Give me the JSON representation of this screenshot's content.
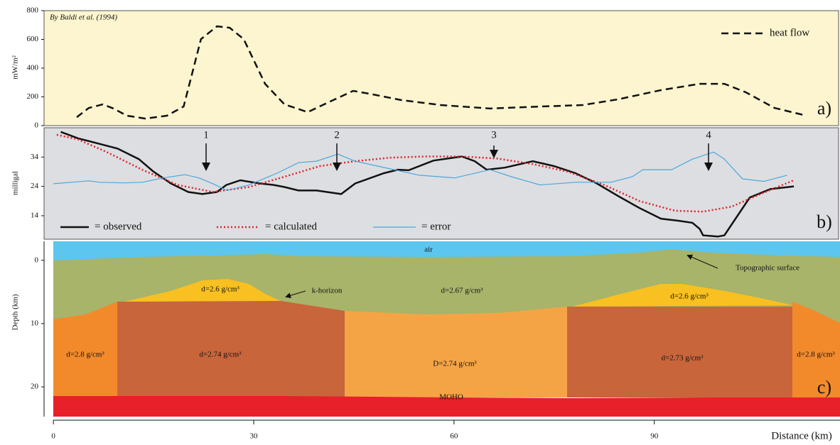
{
  "chart_data": [
    {
      "type": "line",
      "source": "By Baldi et al. (1994)",
      "ylabel": "mW/m²",
      "panel_label": "a)",
      "xlim": [
        -1.4,
        117.6
      ],
      "ylim": [
        0,
        800
      ],
      "yticks": [
        0,
        200,
        400,
        600,
        800
      ],
      "legend": "upper right",
      "series": [
        {
          "name": "heat flow",
          "color": "#111111",
          "dash": "10 6",
          "x": [
            3.5,
            5.3,
            7.4,
            9.0,
            11,
            13.8,
            17,
            19.5,
            22.1,
            24.5,
            26.4,
            28.5,
            31.7,
            34.6,
            38.1,
            41,
            44.9,
            47.9,
            52.1,
            58,
            65.4,
            72.9,
            79.3,
            84.6,
            91,
            96.8,
            100.5,
            103.7,
            108,
            112.8
          ],
          "values": [
            59,
            123,
            148,
            119,
            69,
            49,
            69,
            133,
            602,
            691,
            681,
            602,
            291,
            148,
            94,
            158,
            242,
            217,
            178,
            143,
            119,
            133,
            143,
            183,
            247,
            291,
            291,
            232,
            123,
            69
          ]
        }
      ]
    },
    {
      "type": "line",
      "ylabel": "milligal",
      "panel_label": "b)",
      "xlim": [
        -1.4,
        117.6
      ],
      "ylim": [
        6,
        44
      ],
      "yticks": [
        14,
        24,
        34
      ],
      "legend": "lower left",
      "annotations": [
        "1",
        "2",
        "3",
        "4"
      ],
      "series": [
        {
          "name": "= observed",
          "color": "#111111",
          "width": 2.5,
          "x": [
            1.1,
            3.7,
            6.9,
            9.6,
            12.8,
            14.9,
            17.6,
            20.2,
            22.3,
            24.5,
            25.9,
            28,
            30.9,
            33,
            34.6,
            36.7,
            39.4,
            43.1,
            45.2,
            49.5,
            51.6,
            53.2,
            56.9,
            61.2,
            63.1,
            64.9,
            67.6,
            71.8,
            75,
            78.2,
            81.4,
            84.6,
            87.8,
            91,
            93.6,
            95.7,
            96.8,
            97.3,
            99.5,
            100.5,
            104.3,
            107.4,
            110.9
          ],
          "values": [
            42.6,
            40.4,
            38.5,
            36.9,
            33.3,
            29.2,
            25,
            22.1,
            21.4,
            22.1,
            24.5,
            26.1,
            25,
            24.5,
            23.8,
            22.6,
            22.6,
            21.4,
            25,
            28.5,
            29.7,
            29.5,
            32.8,
            34.2,
            32.6,
            29.7,
            30.4,
            32.6,
            30.9,
            28.5,
            25,
            20.7,
            16.6,
            13,
            12.3,
            11.6,
            9.5,
            7.3,
            6.9,
            7.3,
            20.2,
            23.1,
            24
          ]
        },
        {
          "name": "= calculated",
          "color": "#e0202a",
          "width": 2.5,
          "dash": "2 3",
          "x": [
            0.5,
            3.7,
            8,
            13.3,
            18.6,
            23.9,
            29.3,
            34.6,
            39.9,
            45.2,
            50.5,
            55.9,
            61.2,
            66.5,
            71.8,
            77.1,
            82.5,
            87.8,
            93.1,
            97.3,
            101.6,
            105.9,
            110.9
          ],
          "values": [
            41.6,
            40,
            35.7,
            29.7,
            24.5,
            22.1,
            23.8,
            27.3,
            30.9,
            32.6,
            33.8,
            34.2,
            34.2,
            33.5,
            31.6,
            29,
            24.5,
            19,
            15.7,
            15.4,
            17.1,
            21.4,
            26.1
          ]
        },
        {
          "name": "= error",
          "color": "#4aa8dc",
          "width": 1.2,
          "x": [
            0,
            2.7,
            5.3,
            6.9,
            10.6,
            13.3,
            16.5,
            19.7,
            21.8,
            23.9,
            26,
            29.3,
            33.5,
            36.7,
            39.4,
            42.6,
            45.2,
            50,
            54.8,
            60.1,
            65.4,
            68.6,
            72.9,
            78.2,
            83.5,
            86.7,
            88.3,
            92.6,
            95.7,
            98.9,
            100.5,
            103.2,
            106.4,
            109.9
          ],
          "values": [
            24.9,
            25.4,
            25.9,
            25.4,
            25.2,
            25.4,
            26.9,
            28,
            26.9,
            24.9,
            22.6,
            24.5,
            28.5,
            32.1,
            32.6,
            35,
            32.6,
            30.2,
            27.8,
            26.9,
            29.7,
            27.3,
            24.5,
            25.4,
            25.4,
            27.3,
            29.7,
            29.7,
            33.3,
            35.7,
            33.3,
            26.6,
            25.7,
            27.8
          ]
        }
      ]
    }
  ],
  "cross_section": {
    "type": "cross-section",
    "ylabel": "Depth (km)",
    "xlabel": "Distance (km)",
    "panel_label": "c)",
    "xlim": [
      -1.4,
      117.6
    ],
    "xticks": [
      0,
      30,
      60,
      90
    ],
    "ylim": [
      -3,
      24.7
    ],
    "yticks": [
      0,
      10,
      20
    ],
    "labels": [
      "air",
      "Topographic surface",
      "k-horizon",
      "d=2.67 g/cm³",
      "d=2.6 g/cm³",
      "d=2.6 g/cm³",
      "d=2.8 g/cm³",
      "d=2.74 g/cm³",
      "D=2.74 g/cm³",
      "d=2.73 g/cm³",
      "d=2.8 g/cm³",
      "MOHO"
    ]
  }
}
